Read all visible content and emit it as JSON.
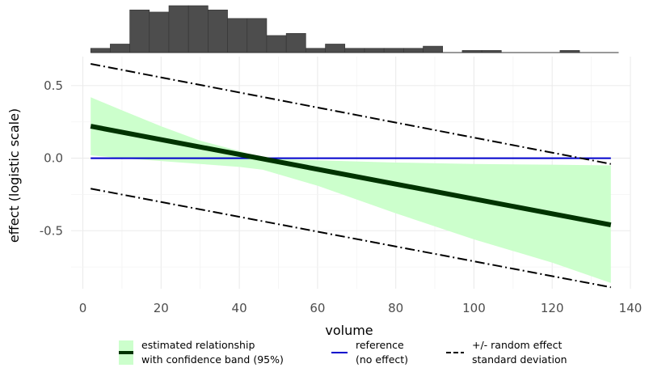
{
  "chart_data": {
    "type": "line",
    "xlabel": "volume",
    "ylabel": "effect (logistic scale)",
    "xlim": [
      -3,
      140
    ],
    "ylim": [
      -0.9,
      0.7
    ],
    "x_ticks": [
      0,
      20,
      40,
      60,
      80,
      100,
      120,
      140
    ],
    "y_ticks": [
      0.5,
      0.0,
      -0.5
    ],
    "y_tick_labels": [
      "0.5",
      "0.0",
      "-0.5"
    ],
    "grid": true,
    "series": [
      {
        "kind": "estimate",
        "color": "#003300",
        "x": [
          2,
          135
        ],
        "y": [
          0.22,
          -0.46
        ]
      },
      {
        "kind": "confidence_band",
        "color": "#ccffcc",
        "x": [
          2,
          10,
          20,
          30,
          40,
          46,
          60,
          80,
          100,
          120,
          135
        ],
        "upper": [
          0.42,
          0.33,
          0.22,
          0.12,
          0.05,
          0.0,
          -0.015,
          -0.03,
          -0.04,
          -0.045,
          -0.05
        ],
        "lower": [
          0.02,
          0.0,
          -0.02,
          -0.04,
          -0.06,
          -0.08,
          -0.19,
          -0.38,
          -0.56,
          -0.72,
          -0.86
        ]
      },
      {
        "kind": "reference",
        "color": "#0000cc",
        "x": [
          2,
          135
        ],
        "y": [
          0.0,
          0.0
        ]
      },
      {
        "kind": "sd_upper",
        "color": "#000000",
        "x": [
          2,
          135
        ],
        "y": [
          0.65,
          -0.04
        ]
      },
      {
        "kind": "sd_lower",
        "color": "#000000",
        "x": [
          2,
          135
        ],
        "y": [
          -0.21,
          -0.89
        ]
      }
    ],
    "histogram": {
      "color": "#4d4d4d",
      "bin_width": 5,
      "bin_starts": [
        2,
        7,
        12,
        17,
        22,
        27,
        32,
        37,
        42,
        47,
        52,
        57,
        62,
        67,
        72,
        77,
        82,
        87,
        92,
        97,
        102,
        107,
        112,
        117,
        122,
        127,
        132
      ],
      "counts": [
        1,
        2,
        10,
        9.5,
        11,
        11,
        10,
        8,
        8,
        4,
        4.5,
        1,
        2,
        1,
        1,
        1,
        1,
        1.5,
        0,
        0.5,
        0.5,
        0,
        0,
        0,
        0.5,
        0,
        0
      ]
    },
    "legend": {
      "placement": "bottom",
      "entries": [
        {
          "line1": "estimated relationship",
          "line2": "with confidence band (95%)"
        },
        {
          "line1": "reference",
          "line2": "(no effect)"
        },
        {
          "line1": "+/- random effect",
          "line2": "standard deviation"
        }
      ]
    }
  }
}
